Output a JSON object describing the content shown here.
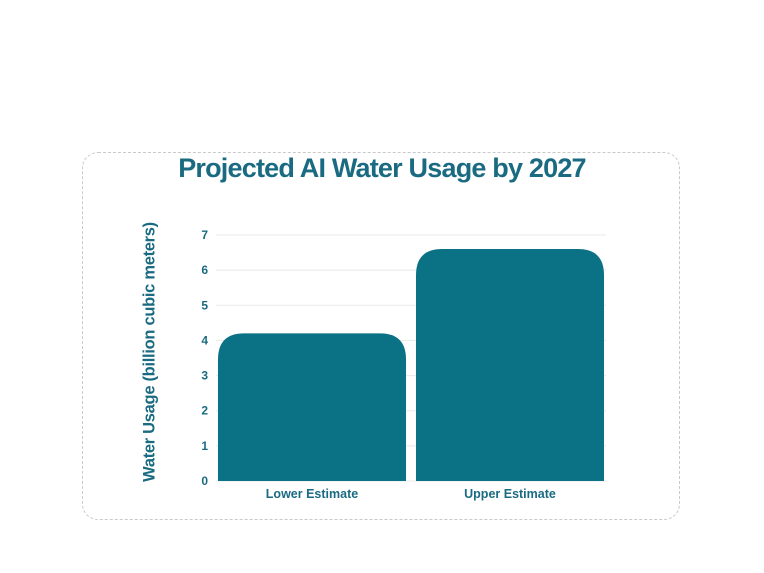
{
  "chart_data": {
    "type": "bar",
    "title": "Projected AI Water Usage by 2027",
    "xlabel": "",
    "ylabel": "Water Usage (billion cubic meters)",
    "categories": [
      "Lower Estimate",
      "Upper Estimate"
    ],
    "values": [
      4.2,
      6.6
    ],
    "ylim": [
      0,
      7
    ],
    "yticks": [
      "0",
      "1",
      "2",
      "3",
      "4",
      "5",
      "6",
      "7"
    ],
    "grid": true,
    "legend": "none",
    "bar_color": "#0b7285",
    "text_color": "#1a6b82",
    "grid_color": "#e8e8e8"
  }
}
